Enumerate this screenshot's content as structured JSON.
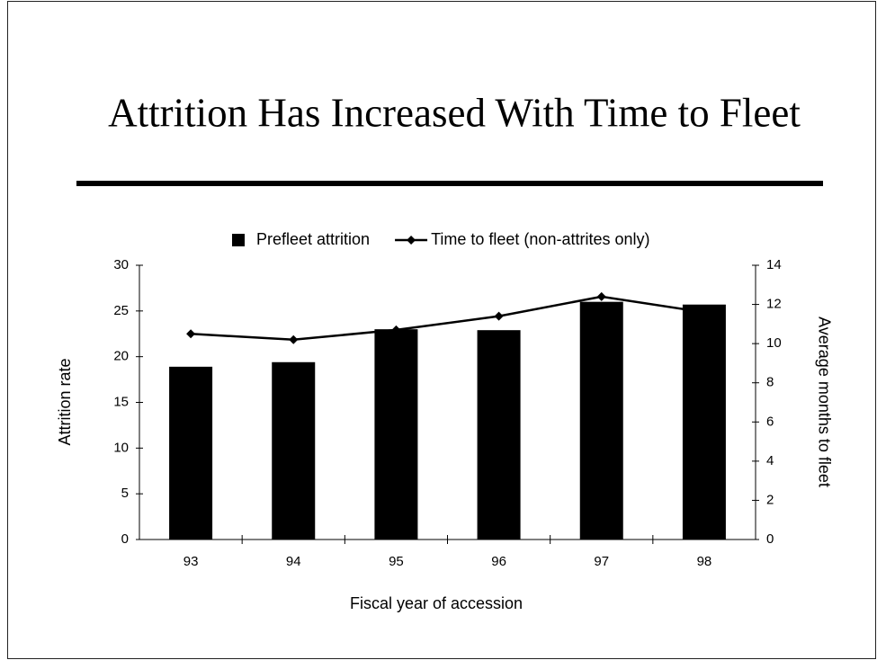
{
  "chart_data": {
    "type": "bar",
    "title": "Attrition Has Increased With Time to Fleet",
    "xlabel": "Fiscal year of accession",
    "ylabel": "Attrition rate",
    "y2label": "Average months to fleet",
    "categories": [
      "93",
      "94",
      "95",
      "96",
      "97",
      "98"
    ],
    "series": [
      {
        "name": "Prefleet attrition",
        "type": "bar",
        "color": "#000000",
        "values": [
          18.9,
          19.4,
          23.0,
          22.9,
          26.0,
          25.7
        ]
      },
      {
        "name": "Time to fleet (non-attrites only)",
        "type": "line",
        "axis": "y2",
        "color": "#000000",
        "values": [
          10.5,
          10.2,
          10.7,
          11.4,
          12.4,
          11.6
        ]
      }
    ],
    "ylim": [
      0,
      30
    ],
    "yticks": [
      0,
      5,
      10,
      15,
      20,
      25,
      30
    ],
    "y2lim": [
      0,
      14
    ],
    "y2ticks": [
      0,
      2,
      4,
      6,
      8,
      10,
      12,
      14
    ],
    "legend": "top",
    "grid": false
  }
}
